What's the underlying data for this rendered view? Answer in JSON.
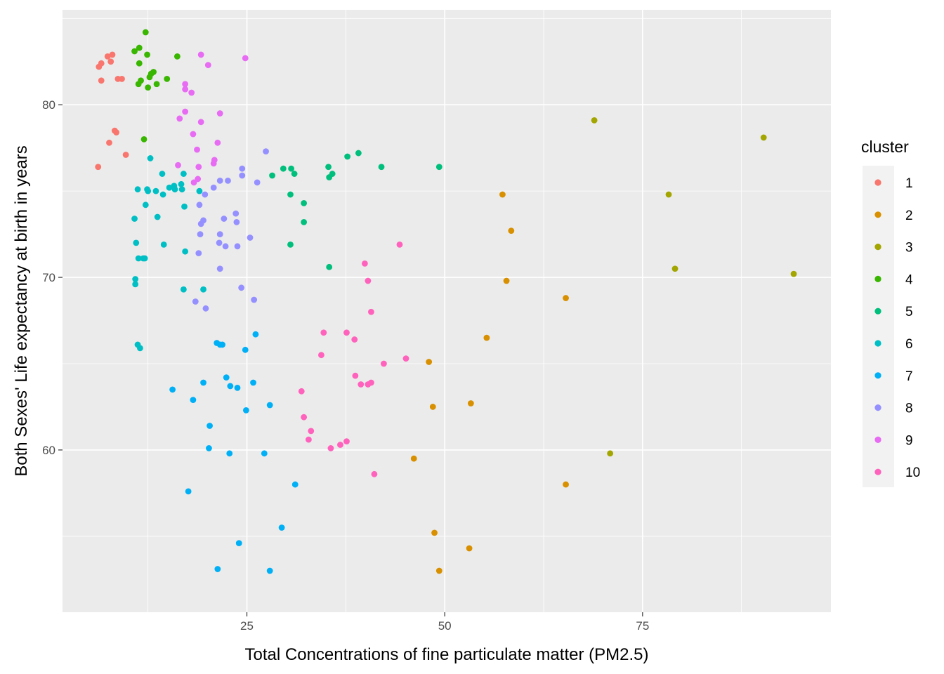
{
  "chart_data": {
    "type": "scatter",
    "xlabel": "Total Concentrations of fine particulate matter (PM2.5)",
    "ylabel": "Both Sexes' Life expectancy at birth in years",
    "xlim": [
      1.7,
      98.8
    ],
    "ylim": [
      50.6,
      85.5
    ],
    "x_ticks": [
      25,
      50,
      75
    ],
    "x_tick_labels": [
      "25",
      "50",
      "75"
    ],
    "y_ticks": [
      60,
      70,
      80
    ],
    "y_tick_labels": [
      "60",
      "70",
      "80"
    ],
    "x_minor": [
      12.5,
      37.5,
      62.5,
      87.5
    ],
    "y_minor": [
      55,
      65,
      75,
      85
    ],
    "grid": true,
    "background": "#EBEBEB",
    "legend": {
      "title": "cluster",
      "placement": "right",
      "items": [
        {
          "label": "1",
          "color": "#F8766D"
        },
        {
          "label": "2",
          "color": "#D89000"
        },
        {
          "label": "3",
          "color": "#A3A500"
        },
        {
          "label": "4",
          "color": "#39B600"
        },
        {
          "label": "5",
          "color": "#00BF7D"
        },
        {
          "label": "6",
          "color": "#00BFC4"
        },
        {
          "label": "7",
          "color": "#00B0F6"
        },
        {
          "label": "8",
          "color": "#9590FF"
        },
        {
          "label": "9",
          "color": "#E76BF3"
        },
        {
          "label": "10",
          "color": "#FF62BC"
        }
      ]
    },
    "series": [
      {
        "cluster": "1",
        "points": [
          [
            6.3,
            82.2
          ],
          [
            6.6,
            82.4
          ],
          [
            7.4,
            82.8
          ],
          [
            7.8,
            82.5
          ],
          [
            8.0,
            82.9
          ],
          [
            8.7,
            81.5
          ],
          [
            9.2,
            81.5
          ],
          [
            6.6,
            81.4
          ],
          [
            8.3,
            78.5
          ],
          [
            8.5,
            78.4
          ],
          [
            7.6,
            77.8
          ],
          [
            9.7,
            77.1
          ],
          [
            6.2,
            76.4
          ]
        ]
      },
      {
        "cluster": "2",
        "points": [
          [
            57.3,
            74.8
          ],
          [
            58.4,
            72.7
          ],
          [
            57.8,
            69.8
          ],
          [
            65.3,
            68.8
          ],
          [
            55.3,
            66.5
          ],
          [
            48.0,
            65.1
          ],
          [
            53.3,
            62.7
          ],
          [
            48.5,
            62.5
          ],
          [
            46.1,
            59.5
          ],
          [
            65.3,
            58.0
          ],
          [
            48.7,
            55.2
          ],
          [
            53.1,
            54.3
          ],
          [
            49.3,
            53.0
          ]
        ]
      },
      {
        "cluster": "3",
        "points": [
          [
            68.9,
            79.1
          ],
          [
            90.3,
            78.1
          ],
          [
            78.3,
            74.8
          ],
          [
            79.1,
            70.5
          ],
          [
            94.1,
            70.2
          ],
          [
            70.9,
            59.8
          ]
        ]
      },
      {
        "cluster": "4",
        "points": [
          [
            12.2,
            84.2
          ],
          [
            11.4,
            83.3
          ],
          [
            10.8,
            83.1
          ],
          [
            12.4,
            82.9
          ],
          [
            16.2,
            82.8
          ],
          [
            11.4,
            82.4
          ],
          [
            12.9,
            81.8
          ],
          [
            13.2,
            81.9
          ],
          [
            12.7,
            81.6
          ],
          [
            14.9,
            81.5
          ],
          [
            11.3,
            81.2
          ],
          [
            11.6,
            81.4
          ],
          [
            13.6,
            81.2
          ],
          [
            12.5,
            81.0
          ],
          [
            12.0,
            78.0
          ]
        ]
      },
      {
        "cluster": "5",
        "points": [
          [
            49.3,
            76.4
          ],
          [
            42.0,
            76.4
          ],
          [
            39.1,
            77.2
          ],
          [
            37.7,
            77.0
          ],
          [
            35.3,
            76.4
          ],
          [
            35.8,
            76.0
          ],
          [
            35.4,
            75.8
          ],
          [
            29.6,
            76.3
          ],
          [
            30.6,
            76.3
          ],
          [
            31.0,
            76.0
          ],
          [
            28.2,
            75.9
          ],
          [
            30.5,
            74.8
          ],
          [
            32.2,
            74.3
          ],
          [
            32.2,
            73.2
          ],
          [
            30.5,
            71.9
          ],
          [
            35.4,
            70.6
          ]
        ]
      },
      {
        "cluster": "6",
        "points": [
          [
            12.8,
            76.9
          ],
          [
            14.3,
            76.0
          ],
          [
            17.0,
            76.0
          ],
          [
            15.8,
            75.3
          ],
          [
            16.7,
            75.4
          ],
          [
            15.2,
            75.2
          ],
          [
            15.9,
            75.1
          ],
          [
            16.8,
            75.1
          ],
          [
            11.2,
            75.1
          ],
          [
            12.4,
            75.1
          ],
          [
            12.5,
            75.0
          ],
          [
            13.5,
            75.0
          ],
          [
            19.0,
            75.0
          ],
          [
            14.4,
            74.8
          ],
          [
            17.1,
            74.1
          ],
          [
            12.2,
            74.2
          ],
          [
            13.7,
            73.5
          ],
          [
            10.8,
            73.4
          ],
          [
            11.0,
            72.0
          ],
          [
            14.5,
            71.9
          ],
          [
            17.2,
            71.5
          ],
          [
            11.3,
            71.1
          ],
          [
            11.9,
            71.1
          ],
          [
            12.1,
            71.1
          ],
          [
            10.9,
            69.9
          ],
          [
            10.9,
            69.6
          ],
          [
            17.0,
            69.3
          ],
          [
            19.5,
            69.3
          ],
          [
            11.2,
            66.1
          ],
          [
            11.5,
            65.9
          ]
        ]
      },
      {
        "cluster": "7",
        "points": [
          [
            21.2,
            66.2
          ],
          [
            21.9,
            66.1
          ],
          [
            21.6,
            66.1
          ],
          [
            26.1,
            66.7
          ],
          [
            24.8,
            65.8
          ],
          [
            22.4,
            64.2
          ],
          [
            22.9,
            63.7
          ],
          [
            23.8,
            63.6
          ],
          [
            25.8,
            63.9
          ],
          [
            19.5,
            63.9
          ],
          [
            15.6,
            63.5
          ],
          [
            18.2,
            62.9
          ],
          [
            27.9,
            62.6
          ],
          [
            24.9,
            62.3
          ],
          [
            20.3,
            61.4
          ],
          [
            20.2,
            60.1
          ],
          [
            22.8,
            59.8
          ],
          [
            27.2,
            59.8
          ],
          [
            31.1,
            58.0
          ],
          [
            17.6,
            57.6
          ],
          [
            29.4,
            55.5
          ],
          [
            24.0,
            54.6
          ],
          [
            21.3,
            53.1
          ],
          [
            27.9,
            53.0
          ]
        ]
      },
      {
        "cluster": "8",
        "points": [
          [
            27.4,
            77.3
          ],
          [
            24.4,
            76.3
          ],
          [
            24.4,
            75.9
          ],
          [
            26.3,
            75.5
          ],
          [
            21.6,
            75.6
          ],
          [
            22.6,
            75.6
          ],
          [
            20.8,
            75.2
          ],
          [
            19.7,
            74.8
          ],
          [
            23.6,
            73.7
          ],
          [
            22.1,
            73.4
          ],
          [
            19.2,
            73.1
          ],
          [
            19.5,
            73.3
          ],
          [
            23.7,
            73.2
          ],
          [
            19.0,
            74.2
          ],
          [
            19.1,
            72.5
          ],
          [
            21.6,
            72.5
          ],
          [
            25.4,
            72.3
          ],
          [
            21.5,
            72.0
          ],
          [
            22.3,
            71.8
          ],
          [
            23.8,
            71.8
          ],
          [
            18.9,
            71.4
          ],
          [
            21.6,
            70.5
          ],
          [
            24.3,
            69.4
          ],
          [
            25.9,
            68.7
          ],
          [
            18.5,
            68.6
          ],
          [
            19.8,
            68.2
          ]
        ]
      },
      {
        "cluster": "9",
        "points": [
          [
            19.2,
            82.9
          ],
          [
            20.1,
            82.3
          ],
          [
            24.8,
            82.7
          ],
          [
            17.2,
            81.2
          ],
          [
            17.2,
            80.9
          ],
          [
            18.0,
            80.7
          ],
          [
            17.2,
            79.6
          ],
          [
            21.6,
            79.5
          ],
          [
            16.5,
            79.2
          ],
          [
            19.2,
            79.0
          ],
          [
            18.2,
            78.3
          ],
          [
            21.3,
            77.8
          ],
          [
            18.7,
            77.4
          ],
          [
            20.9,
            76.8
          ],
          [
            20.8,
            76.6
          ],
          [
            16.3,
            76.5
          ],
          [
            18.9,
            76.4
          ],
          [
            18.8,
            75.7
          ],
          [
            18.3,
            75.5
          ]
        ]
      },
      {
        "cluster": "10",
        "points": [
          [
            44.3,
            71.9
          ],
          [
            39.9,
            70.8
          ],
          [
            40.3,
            69.8
          ],
          [
            40.7,
            68.0
          ],
          [
            34.7,
            66.8
          ],
          [
            37.6,
            66.8
          ],
          [
            38.6,
            66.4
          ],
          [
            34.4,
            65.5
          ],
          [
            45.1,
            65.3
          ],
          [
            42.3,
            65.0
          ],
          [
            38.7,
            64.3
          ],
          [
            39.4,
            63.8
          ],
          [
            40.3,
            63.8
          ],
          [
            40.7,
            63.9
          ],
          [
            31.9,
            63.4
          ],
          [
            32.2,
            61.9
          ],
          [
            33.1,
            61.1
          ],
          [
            32.8,
            60.6
          ],
          [
            37.6,
            60.5
          ],
          [
            36.8,
            60.3
          ],
          [
            35.6,
            60.1
          ],
          [
            41.1,
            58.6
          ]
        ]
      }
    ]
  }
}
